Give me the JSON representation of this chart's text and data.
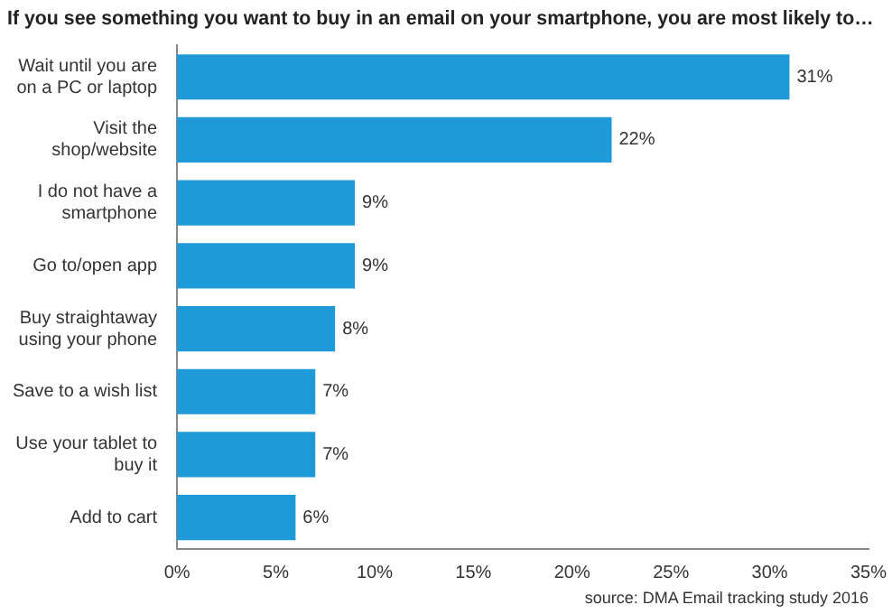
{
  "chart_data": {
    "type": "bar",
    "orientation": "horizontal",
    "title": "If you see something you want to buy in an email on your smartphone, you are most likely to…",
    "categories": [
      "Wait until you are on a PC or laptop",
      "Visit the shop/website",
      "I do not have a smartphone",
      "Go to/open app",
      "Buy straightaway using your phone",
      "Save to a wish list",
      "Use your tablet to buy it",
      "Add to cart"
    ],
    "values": [
      31,
      22,
      9,
      9,
      8,
      7,
      7,
      6
    ],
    "value_labels": [
      "31%",
      "22%",
      "9%",
      "9%",
      "8%",
      "7%",
      "7%",
      "6%"
    ],
    "color": "#1e9ad8",
    "xlim": [
      0,
      35
    ],
    "xticks": [
      {
        "value": 0,
        "label": "0%"
      },
      {
        "value": 5,
        "label": "5%"
      },
      {
        "value": 10,
        "label": "10%"
      },
      {
        "value": 15,
        "label": "15%"
      },
      {
        "value": 20,
        "label": "20%"
      },
      {
        "value": 25,
        "label": "25%"
      },
      {
        "value": 30,
        "label": "30%"
      },
      {
        "value": 35,
        "label": "35%"
      }
    ],
    "grid": false,
    "legend": false,
    "annotations": [
      "source: DMA Email tracking study 2016"
    ]
  }
}
